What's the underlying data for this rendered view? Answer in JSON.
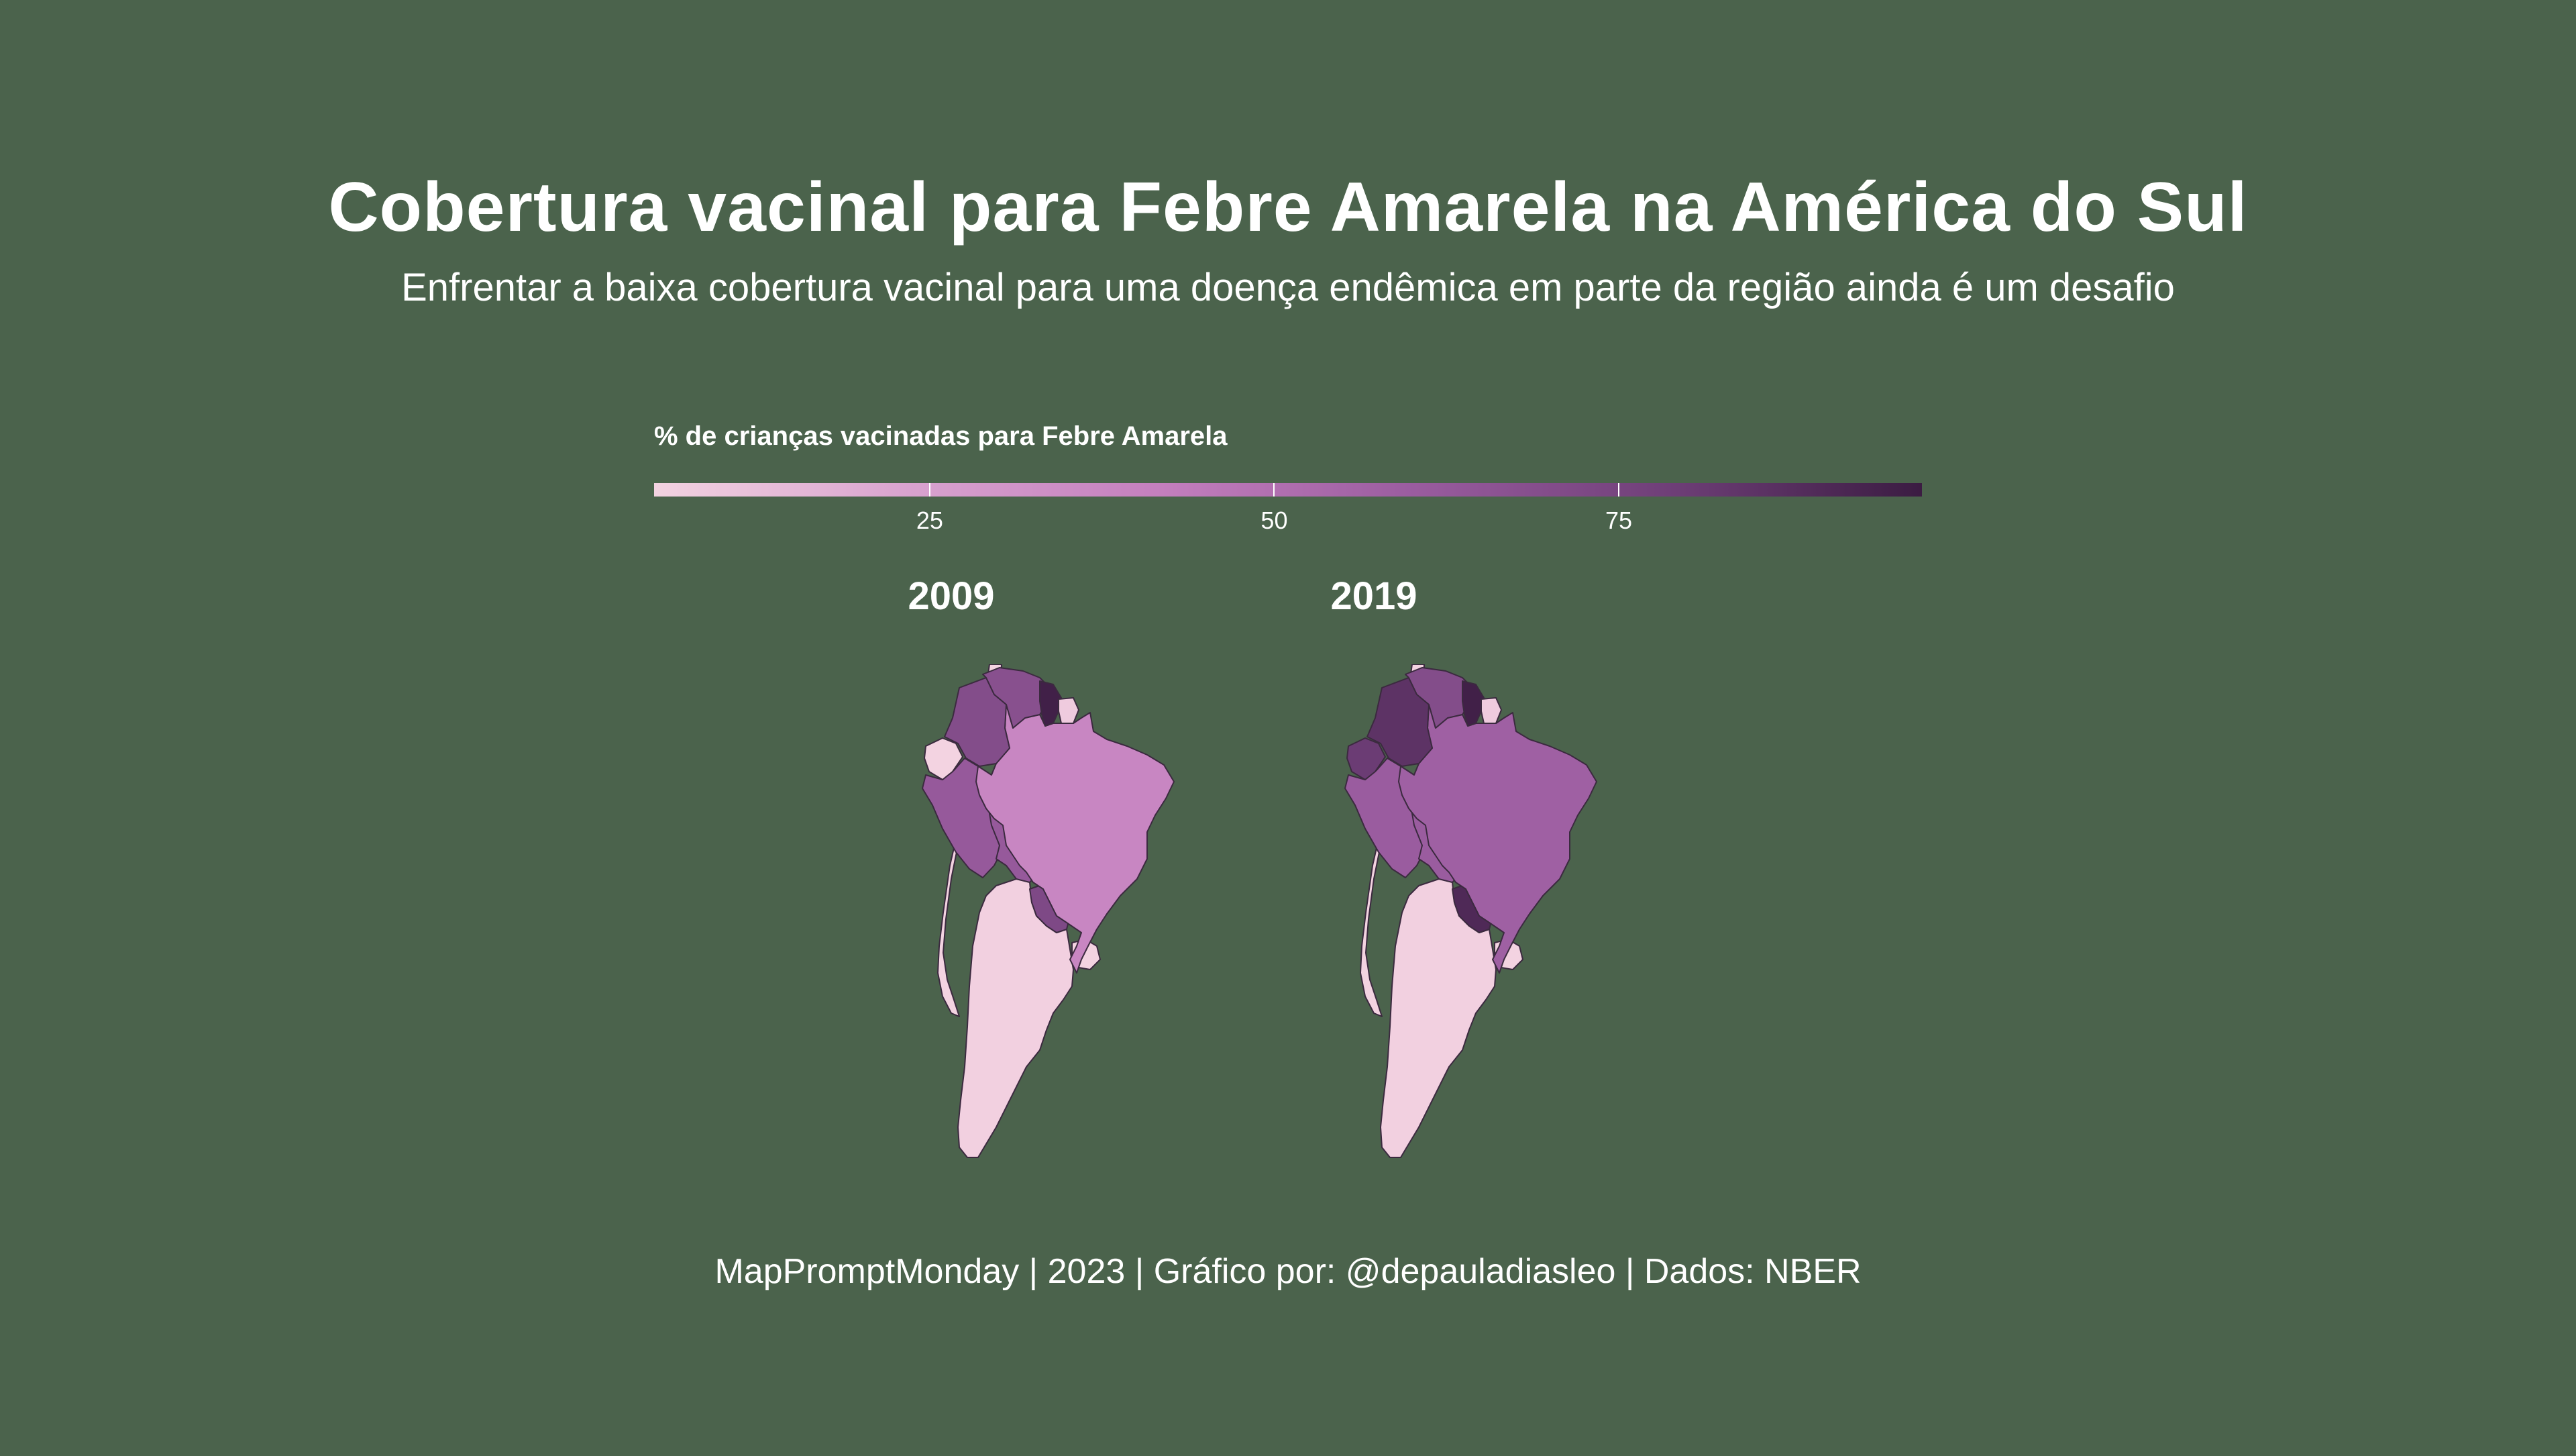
{
  "title": "Cobertura vacinal para Febre Amarela na América do Sul",
  "subtitle": "Enfrentar a baixa cobertura vacinal para uma doença endêmica em parte da região ainda é um desafio",
  "legend": {
    "title": "% de crianças vacinadas para Febre Amarela",
    "ticks": [
      "25",
      "50",
      "75"
    ],
    "tick_values": [
      25,
      50,
      75
    ],
    "range": [
      5,
      97
    ],
    "colors": [
      "#f3d3e1",
      "#d9a3cf",
      "#c47fbe",
      "#9a5c9f",
      "#6f3f78",
      "#3b1c42"
    ]
  },
  "maps": [
    {
      "year": "2009",
      "values": {
        "colombia": 70,
        "venezuela": 68,
        "guyana": 95,
        "suriname": 8,
        "ecuador": 5,
        "peru": 62,
        "brazil": 38,
        "bolivia": 62,
        "paraguay": 72,
        "argentina": 6,
        "uruguay": 5,
        "chile": 5
      }
    },
    {
      "year": "2019",
      "values": {
        "colombia": 85,
        "venezuela": 70,
        "guyana": 95,
        "suriname": 8,
        "ecuador": 80,
        "peru": 60,
        "brazil": 58,
        "bolivia": 60,
        "paraguay": 90,
        "argentina": 6,
        "uruguay": 5,
        "chile": 5
      }
    }
  ],
  "caption": "MapPromptMonday | 2023 | Gráfico por: @depauladiasleo | Dados: NBER"
}
